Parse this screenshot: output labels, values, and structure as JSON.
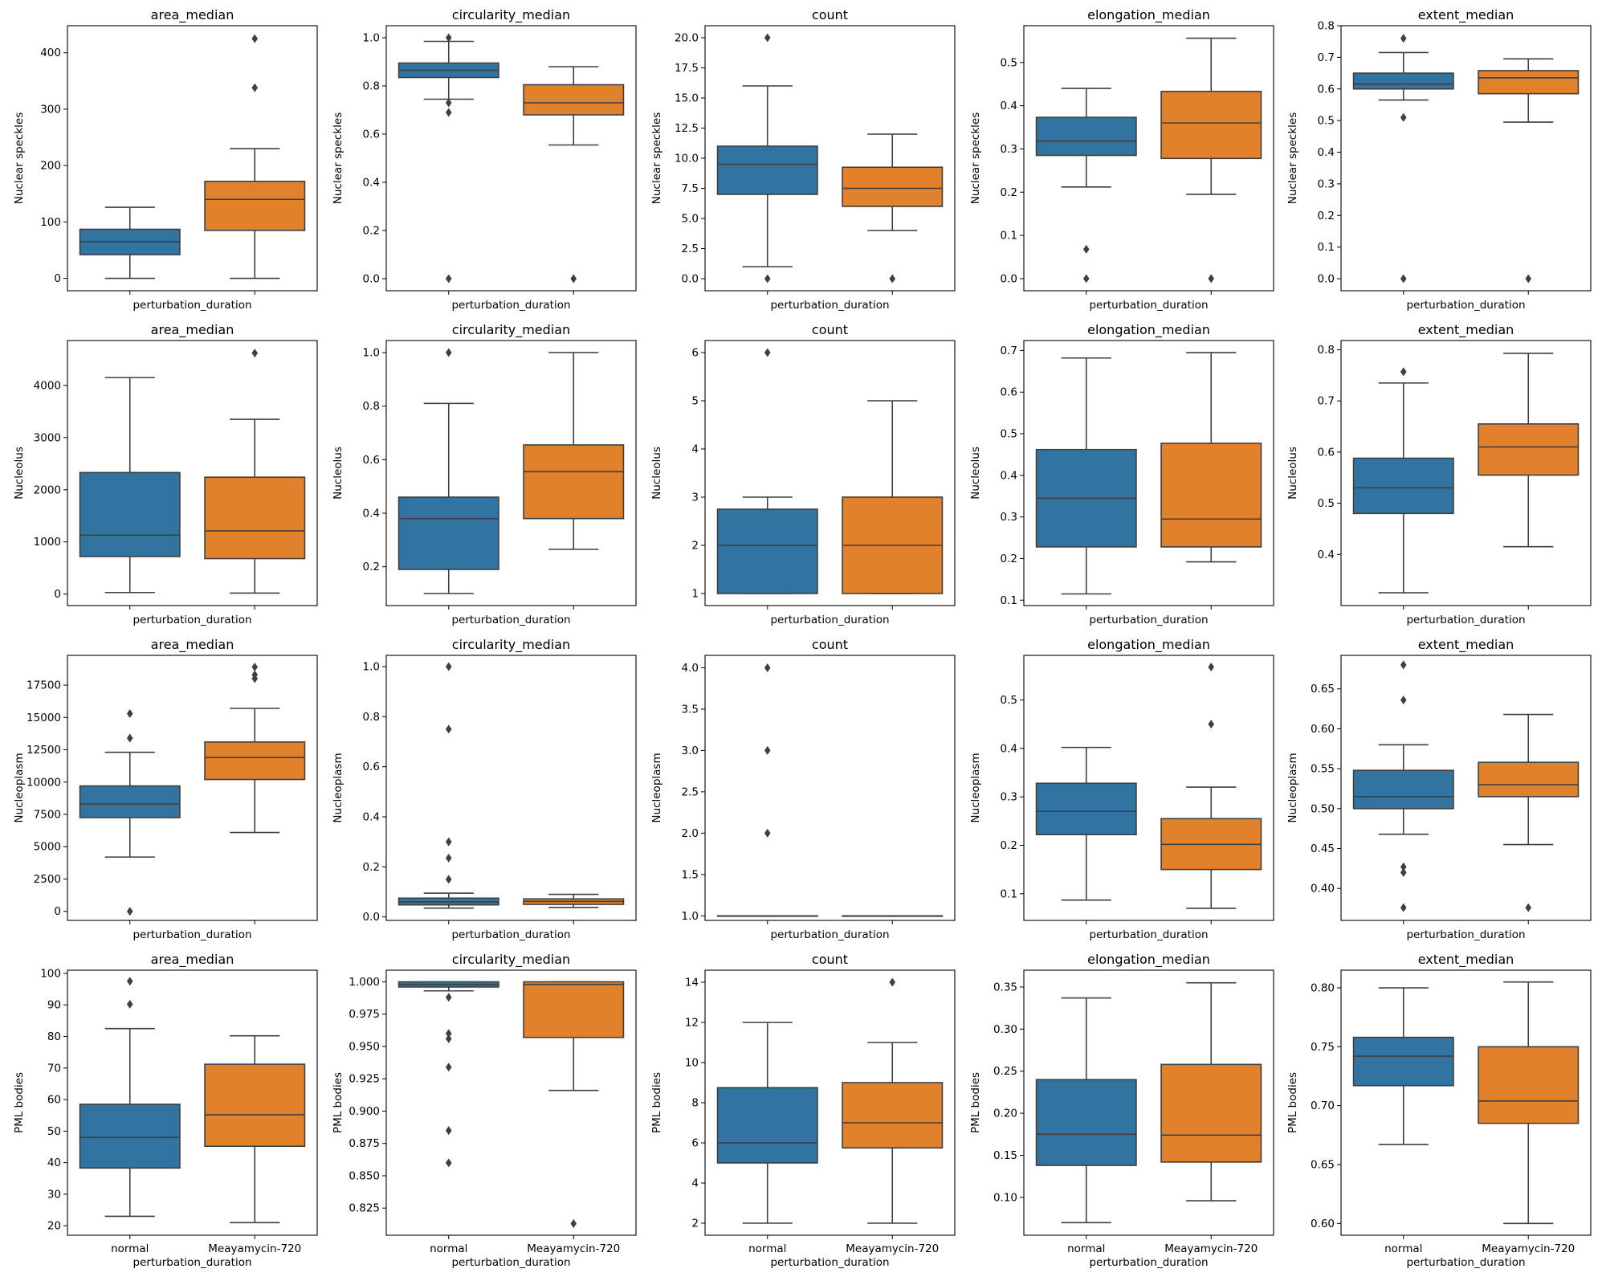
{
  "figure": {
    "grid": false,
    "legend": "none"
  },
  "colors": {
    "normal": "#3274a1",
    "treated": "#e1812c",
    "line": "#3f3f3f",
    "axis": "#000000"
  },
  "chart_data": [
    {
      "type": "box",
      "row": 0,
      "col": 0,
      "title": "area_median",
      "ylabel": "Nuclear speckles",
      "xlabel": "perturbation_duration",
      "categories": [
        "",
        ""
      ],
      "ylim": [
        -22,
        448
      ],
      "yticks": [
        0,
        100,
        200,
        300,
        400
      ],
      "boxes": [
        {
          "q1": 42,
          "median": 65,
          "q3": 87,
          "whisker_low": 0,
          "whisker_high": 126,
          "outliers": []
        },
        {
          "q1": 85,
          "median": 140,
          "q3": 172,
          "whisker_low": 0,
          "whisker_high": 230,
          "outliers": [
            338,
            425
          ]
        }
      ]
    },
    {
      "type": "box",
      "row": 0,
      "col": 1,
      "title": "circularity_median",
      "ylabel": "Nuclear speckles",
      "xlabel": "perturbation_duration",
      "categories": [
        "",
        ""
      ],
      "ylim": [
        -0.05,
        1.05
      ],
      "yticks": [
        0.0,
        0.2,
        0.4,
        0.6,
        0.8,
        1.0
      ],
      "boxes": [
        {
          "q1": 0.835,
          "median": 0.865,
          "q3": 0.895,
          "whisker_low": 0.745,
          "whisker_high": 0.985,
          "outliers": [
            0.0,
            0.69,
            0.73,
            1.0
          ]
        },
        {
          "q1": 0.68,
          "median": 0.73,
          "q3": 0.805,
          "whisker_low": 0.555,
          "whisker_high": 0.88,
          "outliers": [
            0.0
          ]
        }
      ]
    },
    {
      "type": "box",
      "row": 0,
      "col": 2,
      "title": "count",
      "ylabel": "Nuclear speckles",
      "xlabel": "perturbation_duration",
      "categories": [
        "",
        ""
      ],
      "ylim": [
        -1,
        21
      ],
      "yticks": [
        0.0,
        2.5,
        5.0,
        7.5,
        10.0,
        12.5,
        15.0,
        17.5,
        20.0
      ],
      "boxes": [
        {
          "q1": 7.0,
          "median": 9.5,
          "q3": 11.0,
          "whisker_low": 1.0,
          "whisker_high": 16.0,
          "outliers": [
            0.0,
            20.0
          ]
        },
        {
          "q1": 6.0,
          "median": 7.5,
          "q3": 9.25,
          "whisker_low": 4.0,
          "whisker_high": 12.0,
          "outliers": [
            0.0
          ]
        }
      ]
    },
    {
      "type": "box",
      "row": 0,
      "col": 3,
      "title": "elongation_median",
      "ylabel": "Nuclear speckles",
      "xlabel": "perturbation_duration",
      "categories": [
        "",
        ""
      ],
      "ylim": [
        -0.028,
        0.585
      ],
      "yticks": [
        0.0,
        0.1,
        0.2,
        0.3,
        0.4,
        0.5
      ],
      "boxes": [
        {
          "q1": 0.285,
          "median": 0.318,
          "q3": 0.373,
          "whisker_low": 0.212,
          "whisker_high": 0.44,
          "outliers": [
            0.0,
            0.068
          ]
        },
        {
          "q1": 0.278,
          "median": 0.36,
          "q3": 0.433,
          "whisker_low": 0.195,
          "whisker_high": 0.556,
          "outliers": [
            0.0
          ]
        }
      ]
    },
    {
      "type": "box",
      "row": 0,
      "col": 4,
      "title": "extent_median",
      "ylabel": "Nuclear speckles",
      "xlabel": "perturbation_duration",
      "categories": [
        "",
        ""
      ],
      "ylim": [
        -0.038,
        0.8
      ],
      "yticks": [
        0.0,
        0.1,
        0.2,
        0.3,
        0.4,
        0.5,
        0.6,
        0.7,
        0.8
      ],
      "boxes": [
        {
          "q1": 0.6,
          "median": 0.615,
          "q3": 0.65,
          "whisker_low": 0.565,
          "whisker_high": 0.715,
          "outliers": [
            0.0,
            0.51,
            0.76
          ]
        },
        {
          "q1": 0.585,
          "median": 0.635,
          "q3": 0.658,
          "whisker_low": 0.495,
          "whisker_high": 0.695,
          "outliers": [
            0.0
          ]
        }
      ]
    },
    {
      "type": "box",
      "row": 1,
      "col": 0,
      "title": "area_median",
      "ylabel": "Nucleolus",
      "xlabel": "perturbation_duration",
      "categories": [
        "",
        ""
      ],
      "ylim": [
        -220,
        4860
      ],
      "yticks": [
        0,
        1000,
        2000,
        3000,
        4000
      ],
      "boxes": [
        {
          "q1": 720,
          "median": 1130,
          "q3": 2330,
          "whisker_low": 30,
          "whisker_high": 4150,
          "outliers": []
        },
        {
          "q1": 680,
          "median": 1210,
          "q3": 2240,
          "whisker_low": 20,
          "whisker_high": 3350,
          "outliers": [
            4620
          ]
        }
      ]
    },
    {
      "type": "box",
      "row": 1,
      "col": 1,
      "title": "circularity_median",
      "ylabel": "Nucleolus",
      "xlabel": "perturbation_duration",
      "categories": [
        "",
        ""
      ],
      "ylim": [
        0.055,
        1.045
      ],
      "yticks": [
        0.2,
        0.4,
        0.6,
        0.8,
        1.0
      ],
      "boxes": [
        {
          "q1": 0.19,
          "median": 0.38,
          "q3": 0.46,
          "whisker_low": 0.1,
          "whisker_high": 0.81,
          "outliers": [
            1.0
          ]
        },
        {
          "q1": 0.38,
          "median": 0.555,
          "q3": 0.655,
          "whisker_low": 0.265,
          "whisker_high": 1.0,
          "outliers": []
        }
      ]
    },
    {
      "type": "box",
      "row": 1,
      "col": 2,
      "title": "count",
      "ylabel": "Nucleolus",
      "xlabel": "perturbation_duration",
      "categories": [
        "",
        ""
      ],
      "ylim": [
        0.75,
        6.25
      ],
      "yticks": [
        1,
        2,
        3,
        4,
        5,
        6
      ],
      "boxes": [
        {
          "q1": 1.0,
          "median": 2.0,
          "q3": 2.75,
          "whisker_low": 1.0,
          "whisker_high": 3.0,
          "outliers": [
            6.0
          ]
        },
        {
          "q1": 1.0,
          "median": 2.0,
          "q3": 3.0,
          "whisker_low": 1.0,
          "whisker_high": 5.0,
          "outliers": []
        }
      ]
    },
    {
      "type": "box",
      "row": 1,
      "col": 3,
      "title": "elongation_median",
      "ylabel": "Nucleolus",
      "xlabel": "perturbation_duration",
      "categories": [
        "",
        ""
      ],
      "ylim": [
        0.087,
        0.724
      ],
      "yticks": [
        0.1,
        0.2,
        0.3,
        0.4,
        0.5,
        0.6,
        0.7
      ],
      "boxes": [
        {
          "q1": 0.228,
          "median": 0.345,
          "q3": 0.462,
          "whisker_low": 0.115,
          "whisker_high": 0.682,
          "outliers": []
        },
        {
          "q1": 0.228,
          "median": 0.295,
          "q3": 0.477,
          "whisker_low": 0.192,
          "whisker_high": 0.695,
          "outliers": []
        }
      ]
    },
    {
      "type": "box",
      "row": 1,
      "col": 4,
      "title": "extent_median",
      "ylabel": "Nucleolus",
      "xlabel": "perturbation_duration",
      "categories": [
        "",
        ""
      ],
      "ylim": [
        0.3,
        0.818
      ],
      "yticks": [
        0.4,
        0.5,
        0.6,
        0.7,
        0.8
      ],
      "boxes": [
        {
          "q1": 0.48,
          "median": 0.53,
          "q3": 0.588,
          "whisker_low": 0.325,
          "whisker_high": 0.735,
          "outliers": [
            0.757
          ]
        },
        {
          "q1": 0.555,
          "median": 0.61,
          "q3": 0.655,
          "whisker_low": 0.415,
          "whisker_high": 0.793,
          "outliers": []
        }
      ]
    },
    {
      "type": "box",
      "row": 2,
      "col": 0,
      "title": "area_median",
      "ylabel": "Nucleoplasm",
      "xlabel": "perturbation_duration",
      "categories": [
        "",
        ""
      ],
      "ylim": [
        -700,
        19800
      ],
      "yticks": [
        0,
        2500,
        5000,
        7500,
        10000,
        12500,
        15000,
        17500
      ],
      "boxes": [
        {
          "q1": 7250,
          "median": 8300,
          "q3": 9700,
          "whisker_low": 4200,
          "whisker_high": 12300,
          "outliers": [
            0,
            13400,
            15300
          ]
        },
        {
          "q1": 10200,
          "median": 11900,
          "q3": 13100,
          "whisker_low": 6100,
          "whisker_high": 15700,
          "outliers": [
            18000,
            18300,
            18900
          ]
        }
      ]
    },
    {
      "type": "box",
      "row": 2,
      "col": 1,
      "title": "circularity_median",
      "ylabel": "Nucleoplasm",
      "xlabel": "perturbation_duration",
      "categories": [
        "",
        ""
      ],
      "ylim": [
        -0.014,
        1.045
      ],
      "yticks": [
        0.0,
        0.2,
        0.4,
        0.6,
        0.8,
        1.0
      ],
      "boxes": [
        {
          "q1": 0.048,
          "median": 0.06,
          "q3": 0.075,
          "whisker_low": 0.035,
          "whisker_high": 0.095,
          "outliers": [
            0.15,
            0.235,
            0.3,
            0.75,
            1.0
          ]
        },
        {
          "q1": 0.05,
          "median": 0.062,
          "q3": 0.072,
          "whisker_low": 0.038,
          "whisker_high": 0.09,
          "outliers": []
        }
      ]
    },
    {
      "type": "box",
      "row": 2,
      "col": 2,
      "title": "count",
      "ylabel": "Nucleoplasm",
      "xlabel": "perturbation_duration",
      "categories": [
        "",
        ""
      ],
      "ylim": [
        0.945,
        4.15
      ],
      "yticks": [
        1.0,
        1.5,
        2.0,
        2.5,
        3.0,
        3.5,
        4.0
      ],
      "boxes": [
        {
          "q1": 1.0,
          "median": 1.0,
          "q3": 1.0,
          "whisker_low": 1.0,
          "whisker_high": 1.0,
          "outliers": [
            2.0,
            3.0,
            4.0
          ]
        },
        {
          "q1": 1.0,
          "median": 1.0,
          "q3": 1.0,
          "whisker_low": 1.0,
          "whisker_high": 1.0,
          "outliers": []
        }
      ]
    },
    {
      "type": "box",
      "row": 2,
      "col": 3,
      "title": "elongation_median",
      "ylabel": "Nucleoplasm",
      "xlabel": "perturbation_duration",
      "categories": [
        "",
        ""
      ],
      "ylim": [
        0.045,
        0.592
      ],
      "yticks": [
        0.1,
        0.2,
        0.3,
        0.4,
        0.5
      ],
      "boxes": [
        {
          "q1": 0.222,
          "median": 0.27,
          "q3": 0.328,
          "whisker_low": 0.087,
          "whisker_high": 0.402,
          "outliers": []
        },
        {
          "q1": 0.15,
          "median": 0.202,
          "q3": 0.255,
          "whisker_low": 0.07,
          "whisker_high": 0.32,
          "outliers": [
            0.45,
            0.568
          ]
        }
      ]
    },
    {
      "type": "box",
      "row": 2,
      "col": 4,
      "title": "extent_median",
      "ylabel": "Nucleoplasm",
      "xlabel": "perturbation_duration",
      "categories": [
        "",
        ""
      ],
      "ylim": [
        0.36,
        0.692
      ],
      "yticks": [
        0.4,
        0.45,
        0.5,
        0.55,
        0.6,
        0.65
      ],
      "boxes": [
        {
          "q1": 0.5,
          "median": 0.515,
          "q3": 0.548,
          "whisker_low": 0.468,
          "whisker_high": 0.58,
          "outliers": [
            0.376,
            0.42,
            0.427,
            0.636,
            0.68
          ]
        },
        {
          "q1": 0.515,
          "median": 0.53,
          "q3": 0.558,
          "whisker_low": 0.455,
          "whisker_high": 0.618,
          "outliers": [
            0.376
          ]
        }
      ]
    },
    {
      "type": "box",
      "row": 3,
      "col": 0,
      "title": "area_median",
      "ylabel": "PML bodies",
      "xlabel": "perturbation_duration",
      "categories": [
        "normal",
        "Meayamycin-720"
      ],
      "ylim": [
        17,
        101
      ],
      "yticks": [
        20,
        30,
        40,
        50,
        60,
        70,
        80,
        90,
        100
      ],
      "boxes": [
        {
          "q1": 38.3,
          "median": 48,
          "q3": 58.5,
          "whisker_low": 23,
          "whisker_high": 82.5,
          "outliers": [
            90.2,
            97.5
          ]
        },
        {
          "q1": 45.2,
          "median": 55.2,
          "q3": 71.2,
          "whisker_low": 21,
          "whisker_high": 80.2,
          "outliers": []
        }
      ]
    },
    {
      "type": "box",
      "row": 3,
      "col": 1,
      "title": "circularity_median",
      "ylabel": "PML bodies",
      "xlabel": "perturbation_duration",
      "categories": [
        "normal",
        "Meayamycin-720"
      ],
      "ylim": [
        0.804,
        1.009
      ],
      "yticks": [
        0.825,
        0.85,
        0.875,
        0.9,
        0.925,
        0.95,
        0.975,
        1.0
      ],
      "boxes": [
        {
          "q1": 0.996,
          "median": 0.998,
          "q3": 1.0,
          "whisker_low": 0.993,
          "whisker_high": 1.0,
          "outliers": [
            0.86,
            0.885,
            0.934,
            0.956,
            0.96,
            0.988
          ]
        },
        {
          "q1": 0.957,
          "median": 0.998,
          "q3": 1.0,
          "whisker_low": 0.916,
          "whisker_high": 1.0,
          "outliers": [
            0.813
          ]
        }
      ]
    },
    {
      "type": "box",
      "row": 3,
      "col": 2,
      "title": "count",
      "ylabel": "PML bodies",
      "xlabel": "perturbation_duration",
      "categories": [
        "normal",
        "Meayamycin-720"
      ],
      "ylim": [
        1.4,
        14.6
      ],
      "yticks": [
        2,
        4,
        6,
        8,
        10,
        12,
        14
      ],
      "boxes": [
        {
          "q1": 5.0,
          "median": 6.0,
          "q3": 8.75,
          "whisker_low": 2.0,
          "whisker_high": 12.0,
          "outliers": []
        },
        {
          "q1": 5.75,
          "median": 7.0,
          "q3": 9.0,
          "whisker_low": 2.0,
          "whisker_high": 11.0,
          "outliers": [
            14.0
          ]
        }
      ]
    },
    {
      "type": "box",
      "row": 3,
      "col": 3,
      "title": "elongation_median",
      "ylabel": "PML bodies",
      "xlabel": "perturbation_duration",
      "categories": [
        "normal",
        "Meayamycin-720"
      ],
      "ylim": [
        0.055,
        0.37
      ],
      "yticks": [
        0.1,
        0.15,
        0.2,
        0.25,
        0.3,
        0.35
      ],
      "boxes": [
        {
          "q1": 0.138,
          "median": 0.175,
          "q3": 0.24,
          "whisker_low": 0.07,
          "whisker_high": 0.337,
          "outliers": []
        },
        {
          "q1": 0.142,
          "median": 0.174,
          "q3": 0.258,
          "whisker_low": 0.096,
          "whisker_high": 0.355,
          "outliers": []
        }
      ]
    },
    {
      "type": "box",
      "row": 3,
      "col": 4,
      "title": "extent_median",
      "ylabel": "PML bodies",
      "xlabel": "perturbation_duration",
      "categories": [
        "normal",
        "Meayamycin-720"
      ],
      "ylim": [
        0.59,
        0.815
      ],
      "yticks": [
        0.6,
        0.65,
        0.7,
        0.75,
        0.8
      ],
      "boxes": [
        {
          "q1": 0.717,
          "median": 0.742,
          "q3": 0.758,
          "whisker_low": 0.667,
          "whisker_high": 0.8,
          "outliers": []
        },
        {
          "q1": 0.685,
          "median": 0.704,
          "q3": 0.75,
          "whisker_low": 0.6,
          "whisker_high": 0.805,
          "outliers": []
        }
      ]
    }
  ]
}
